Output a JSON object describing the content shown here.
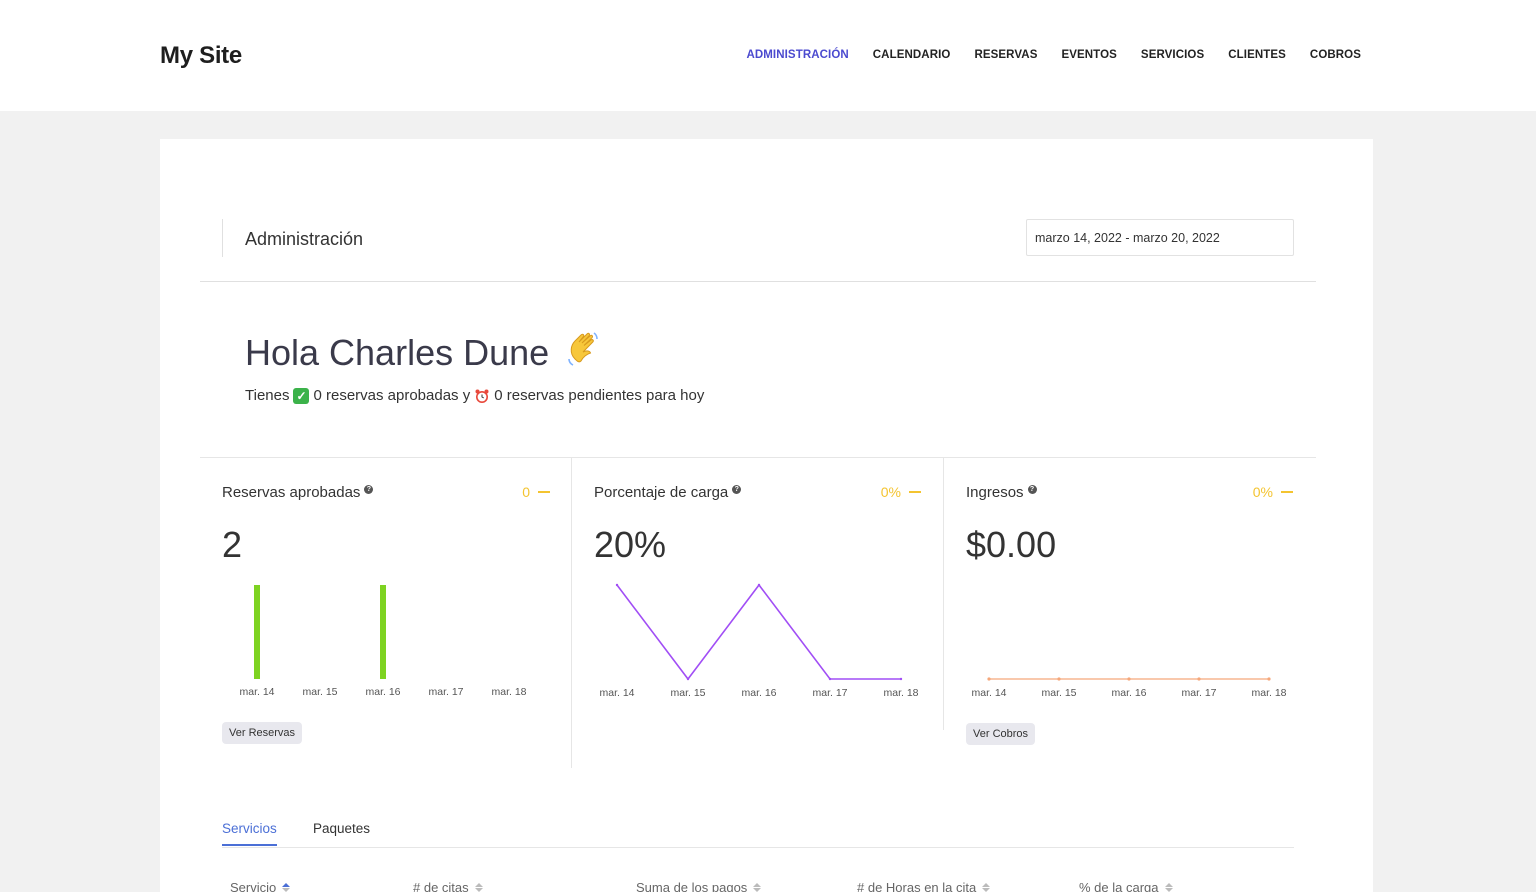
{
  "site": {
    "title": "My Site"
  },
  "nav": [
    {
      "label": "ADMINISTRACIÓN",
      "active": true
    },
    {
      "label": "CALENDARIO"
    },
    {
      "label": "RESERVAS"
    },
    {
      "label": "EVENTOS"
    },
    {
      "label": "SERVICIOS"
    },
    {
      "label": "CLIENTES"
    },
    {
      "label": "COBROS"
    }
  ],
  "admin": {
    "title": "Administración",
    "date_range": "marzo 14, 2022 - marzo 20, 2022"
  },
  "greeting": {
    "title": "Hola Charles Dune",
    "prefix": "Tienes",
    "approved": "0 reservas aprobadas y",
    "pending": "0 reservas pendientes para hoy"
  },
  "stats": {
    "approved": {
      "title": "Reservas aprobadas",
      "change": "0",
      "value": "2",
      "button": "Ver Reservas"
    },
    "load": {
      "title": "Porcentaje de carga",
      "change": "0%",
      "value": "20%"
    },
    "income": {
      "title": "Ingresos",
      "change": "0%",
      "value": "$0.00",
      "button": "Ver Cobros"
    }
  },
  "chart_data": [
    {
      "type": "bar",
      "categories": [
        "mar. 14",
        "mar. 15",
        "mar. 16",
        "mar. 17",
        "mar. 18"
      ],
      "values": [
        1,
        0,
        1,
        0,
        0
      ],
      "color": "#7ed321"
    },
    {
      "type": "line",
      "categories": [
        "mar. 14",
        "mar. 15",
        "mar. 16",
        "mar. 17",
        "mar. 18"
      ],
      "values": [
        50,
        0,
        50,
        0,
        0
      ],
      "color": "#a14ef5"
    },
    {
      "type": "line",
      "categories": [
        "mar. 14",
        "mar. 15",
        "mar. 16",
        "mar. 17",
        "mar. 18"
      ],
      "values": [
        0,
        0,
        0,
        0,
        0
      ],
      "color": "#f5a77a"
    }
  ],
  "tabs": [
    {
      "label": "Servicios",
      "active": true
    },
    {
      "label": "Paquetes"
    }
  ],
  "table": {
    "headers": [
      "Servicio",
      "# de citas",
      "Suma de los pagos",
      "# de Horas en la cita",
      "% de la carga"
    ]
  },
  "colors": {
    "accent": "#4b4acf",
    "tab_accent": "#4b6fd6",
    "change": "#f4c430"
  }
}
